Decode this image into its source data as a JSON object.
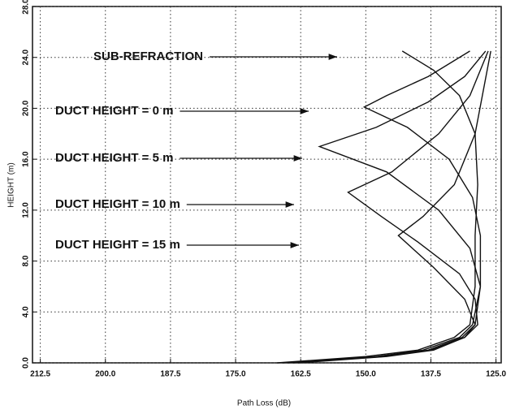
{
  "chart_data": {
    "type": "line",
    "xlabel": "Path Loss (dB)",
    "ylabel": "HEIGHT (m)",
    "xlim": [
      214,
      124
    ],
    "ylim": [
      0,
      28
    ],
    "xticks": [
      212.5,
      {
        "value": 200,
        "label": "200.0"
      },
      187.5,
      {
        "value": 175,
        "label": "175.0"
      },
      162.5,
      {
        "value": 150,
        "label": "150.0"
      },
      137.5,
      {
        "value": 125,
        "label": "125.0"
      }
    ],
    "yticks": [
      {
        "value": 0,
        "label": "0.0"
      },
      {
        "value": 4,
        "label": "4.0"
      },
      {
        "value": 8,
        "label": "8.0"
      },
      {
        "value": 12,
        "label": "12.0"
      },
      {
        "value": 16,
        "label": "16.0"
      },
      {
        "value": 20,
        "label": "20.0"
      },
      {
        "value": 24,
        "label": "24.0"
      },
      {
        "value": 28,
        "label": "28.0"
      }
    ],
    "grid": true,
    "color": "#111111",
    "annotations": [
      "SUB-REFRACTION",
      "DUCT HEIGHT = 0 m",
      "DUCT HEIGHT = 5 m",
      "DUCT HEIGHT = 10 m",
      "DUCT HEIGHT = 15 m"
    ],
    "series": [
      {
        "x": [
          167,
          150,
          140,
          133,
          130,
          129,
          129,
          128.5,
          129,
          132,
          137,
          141,
          143
        ],
        "values": [
          0,
          0.5,
          1,
          2,
          3,
          6,
          10,
          14,
          18,
          21,
          23,
          24,
          24.5
        ]
      },
      {
        "x": [
          166,
          148,
          139,
          132,
          129.5,
          128,
          128,
          129.5,
          134,
          142,
          150.3,
          146,
          138,
          130
        ],
        "values": [
          0,
          0.5,
          1,
          2,
          3,
          6,
          10,
          13,
          16,
          18.5,
          20.1,
          21,
          22.5,
          24.5
        ]
      },
      {
        "x": [
          165,
          147,
          138,
          131.5,
          129,
          128,
          130,
          136,
          146,
          158.9,
          148,
          138,
          131,
          127
        ],
        "values": [
          0,
          0.5,
          1,
          2,
          3,
          6,
          9,
          12,
          15,
          17,
          18.5,
          20.5,
          22.5,
          24.5
        ]
      },
      {
        "x": [
          164,
          146.5,
          137.5,
          131,
          128.5,
          129,
          132,
          140,
          147,
          153.4,
          145,
          136,
          130,
          126.5
        ],
        "values": [
          0,
          0.5,
          1,
          2,
          3,
          5,
          7,
          9.5,
          11.5,
          13.4,
          15,
          18,
          21,
          24.5
        ]
      },
      {
        "x": [
          163,
          146,
          137,
          131,
          129,
          131,
          137,
          143.75,
          139,
          133,
          129,
          126
        ],
        "values": [
          0,
          0.5,
          1,
          2,
          3,
          5,
          7.5,
          10,
          11.5,
          14,
          18,
          24.5
        ]
      }
    ]
  }
}
